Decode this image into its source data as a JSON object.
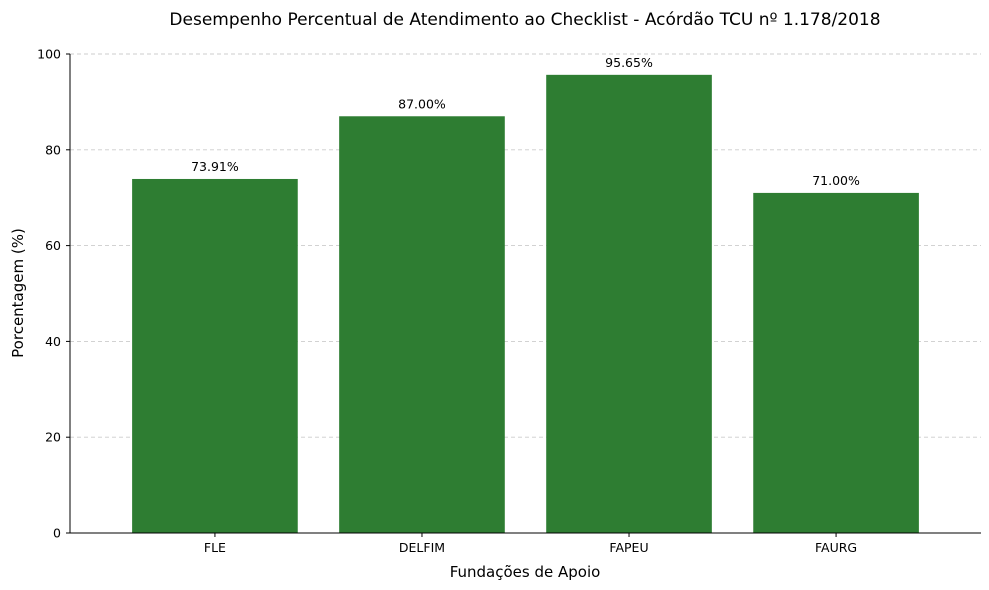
{
  "chart_data": {
    "type": "bar",
    "title": "Desempenho Percentual de Atendimento ao Checklist - Acórdão TCU nº 1.178/2018",
    "xlabel": "Fundações de Apoio",
    "ylabel": "Porcentagem (%)",
    "categories": [
      "FLE",
      "DELFIM",
      "FAPEU",
      "FAURG"
    ],
    "values": [
      73.91,
      87.0,
      95.65,
      71.0
    ],
    "data_labels": [
      "73.91%",
      "87.00%",
      "95.65%",
      "71.00%"
    ],
    "ylim": [
      0,
      100
    ],
    "yticks": [
      0,
      20,
      40,
      60,
      80,
      100
    ],
    "grid": "horizontal dashed",
    "bar_color": "#2e7d32"
  }
}
